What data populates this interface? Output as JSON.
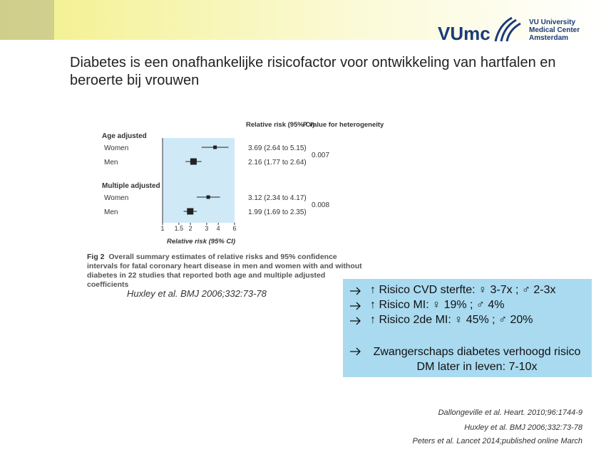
{
  "header": {
    "logo_text": "VUmc",
    "institution": [
      "VU University",
      "Medical Center",
      "Amsterdam"
    ]
  },
  "title": "Diabetes is een onafhankelijke risicofactor voor ontwikkeling van hartfalen en beroerte bij vrouwen",
  "forest_plot": {
    "col_rr": "Relative risk (95% CI)",
    "col_p": "P value for heterogeneity",
    "groups": [
      {
        "name": "Age adjusted",
        "p": 0.007,
        "rows": [
          {
            "label": "Women",
            "rr": 3.69,
            "lo": 2.64,
            "hi": 5.15,
            "text": "3.69 (2.64 to 5.15)"
          },
          {
            "label": "Men",
            "rr": 2.16,
            "lo": 1.77,
            "hi": 2.64,
            "text": "2.16 (1.77 to 2.64)"
          }
        ]
      },
      {
        "name": "Multiple adjusted",
        "p": 0.008,
        "rows": [
          {
            "label": "Women",
            "rr": 3.12,
            "lo": 2.34,
            "hi": 4.17,
            "text": "3.12 (2.34 to 4.17)"
          },
          {
            "label": "Men",
            "rr": 1.99,
            "lo": 1.69,
            "hi": 2.35,
            "text": "1.99 (1.69 to 2.35)"
          }
        ]
      }
    ],
    "xlim": [
      1,
      6
    ],
    "xticks": [
      1,
      1.5,
      2,
      3,
      4,
      6
    ],
    "log": true,
    "xlabel": "Relative risk (95% CI)",
    "fig_label": "Fig 2",
    "caption": "Overall summary estimates of relative risks and 95% confidence intervals for fatal coronary heart disease in men and women with and without diabetes in 22 studies that reported both age and multiple adjusted coefficients"
  },
  "citation": "Huxley et al. BMJ 2006;332:73-78",
  "bullets": [
    "↑ Risico CVD sterfte: ♀ 3-7x ; ♂ 2-3x",
    "↑ Risico MI: ♀ 19% ; ♂ 4%",
    "↑ Risico 2de MI: ♀ 45% ; ♂ 20%"
  ],
  "extra_bullet": "Zwangerschaps diabetes verhoogd risico DM later in leven: 7-10x",
  "references": [
    "Dallongeville et al. Heart. 2010;96:1744-9",
    "Huxley et al. BMJ 2006;332:73-78",
    "Peters et al. Lancet 2014;published online March"
  ]
}
